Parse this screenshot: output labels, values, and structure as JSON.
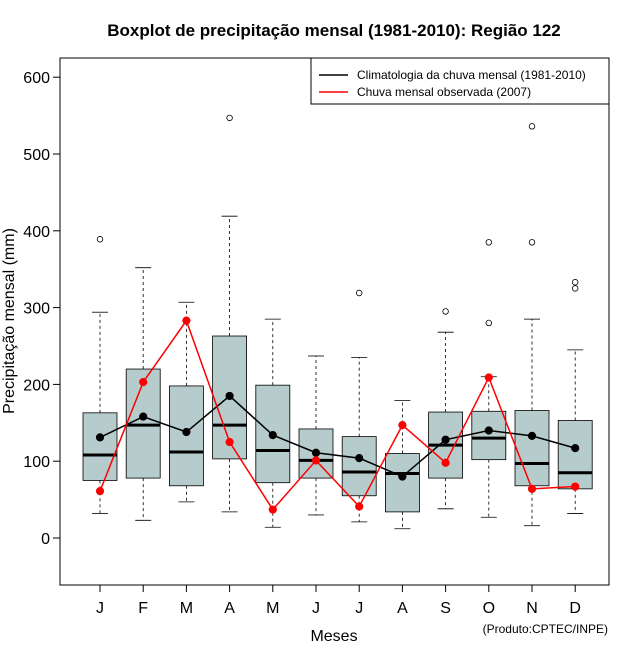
{
  "chart_data": {
    "type": "boxplot",
    "title": "Boxplot de precipitação mensal (1981-2010): Região 122",
    "xlabel": "Meses",
    "ylabel": "Precipitação mensal (mm)",
    "ylim": [
      -60,
      620
    ],
    "yticks": [
      0,
      100,
      200,
      300,
      400,
      500,
      600
    ],
    "categories": [
      "J",
      "F",
      "M",
      "A",
      "M",
      "J",
      "J",
      "A",
      "S",
      "O",
      "N",
      "D"
    ],
    "boxes": [
      {
        "whisker_low": 32,
        "q1": 75,
        "median": 108,
        "q3": 163,
        "whisker_high": 294,
        "outliers": [
          389
        ]
      },
      {
        "whisker_low": 23,
        "q1": 78,
        "median": 147,
        "q3": 220,
        "whisker_high": 352,
        "outliers": []
      },
      {
        "whisker_low": 47,
        "q1": 68,
        "median": 112,
        "q3": 198,
        "whisker_high": 307,
        "outliers": []
      },
      {
        "whisker_low": 34,
        "q1": 103,
        "median": 147,
        "q3": 263,
        "whisker_high": 419,
        "outliers": [
          547
        ]
      },
      {
        "whisker_low": 14,
        "q1": 72,
        "median": 114,
        "q3": 199,
        "whisker_high": 285,
        "outliers": []
      },
      {
        "whisker_low": 30,
        "q1": 78,
        "median": 101,
        "q3": 142,
        "whisker_high": 237,
        "outliers": []
      },
      {
        "whisker_low": 21,
        "q1": 55,
        "median": 86,
        "q3": 132,
        "whisker_high": 235,
        "outliers": [
          319
        ]
      },
      {
        "whisker_low": 12,
        "q1": 34,
        "median": 84,
        "q3": 110,
        "whisker_high": 179,
        "outliers": []
      },
      {
        "whisker_low": 38,
        "q1": 78,
        "median": 121,
        "q3": 164,
        "whisker_high": 268,
        "outliers": [
          295
        ]
      },
      {
        "whisker_low": 27,
        "q1": 102,
        "median": 130,
        "q3": 165,
        "whisker_high": 210,
        "outliers": [
          280,
          385
        ]
      },
      {
        "whisker_low": 16,
        "q1": 68,
        "median": 97,
        "q3": 166,
        "whisker_high": 285,
        "outliers": [
          385,
          536
        ]
      },
      {
        "whisker_low": 32,
        "q1": 64,
        "median": 85,
        "q3": 153,
        "whisker_high": 245,
        "outliers": [
          325,
          333
        ]
      }
    ],
    "series": [
      {
        "name": "Climatologia da chuva mensal (1981-2010)",
        "color": "#000000",
        "values": [
          131,
          158,
          138,
          185,
          134,
          111,
          104,
          80,
          128,
          140,
          133,
          117
        ]
      },
      {
        "name": "Chuva mensal observada (2007)",
        "color": "#ff0000",
        "values": [
          61,
          203,
          283,
          125,
          37,
          101,
          41,
          147,
          98,
          209,
          64,
          67
        ]
      }
    ],
    "box_fill": "#b6cbcb",
    "legend_position": "top-right",
    "credit": "(Produto:CPTEC/INPE)"
  }
}
